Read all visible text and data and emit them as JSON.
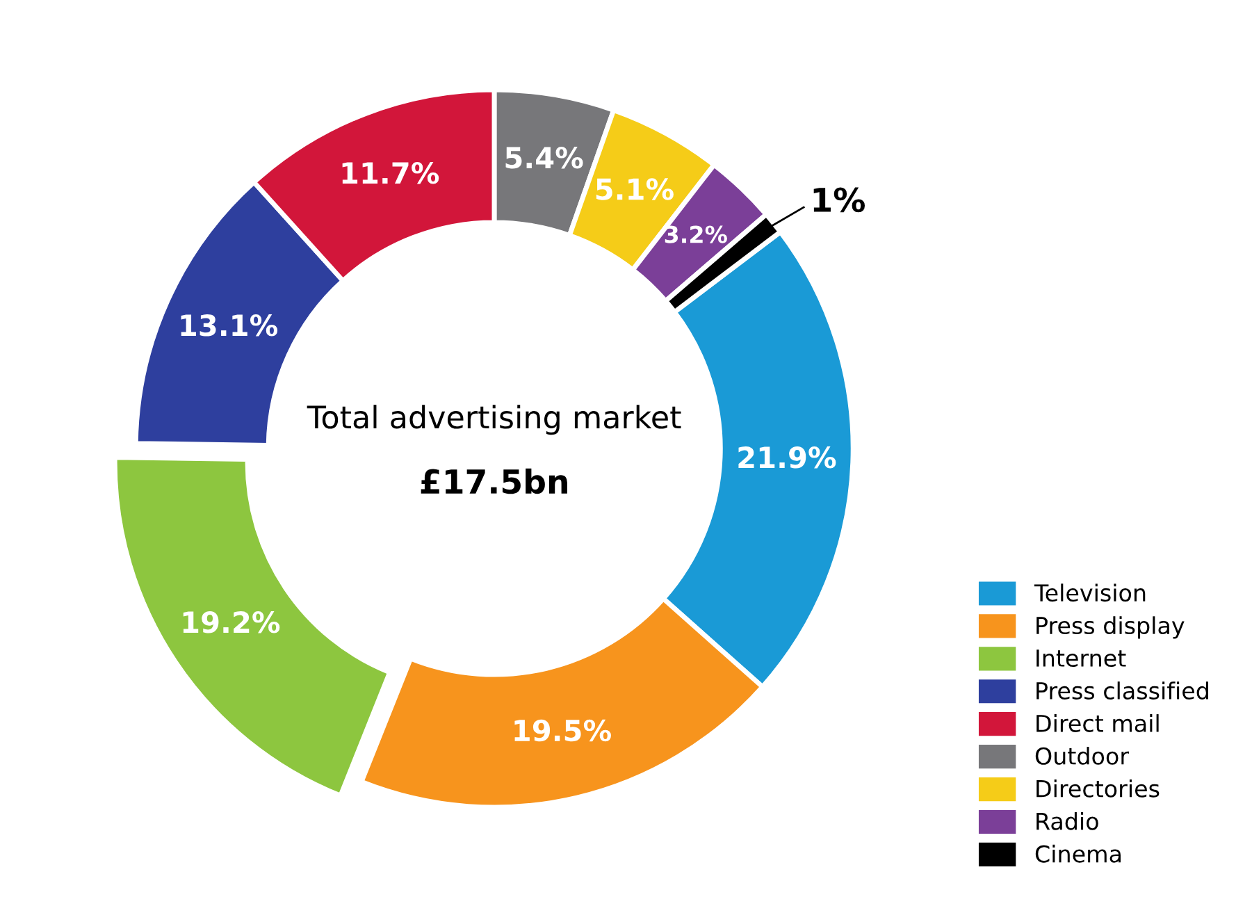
{
  "chart_data": {
    "type": "donut",
    "title": "Total advertising market",
    "subtitle": "£17.5bn",
    "categories": [
      "Television",
      "Press display",
      "Internet",
      "Press classified",
      "Direct mail",
      "Outdoor",
      "Directories",
      "Radio",
      "Cinema"
    ],
    "values": [
      21.9,
      19.5,
      19.2,
      13.1,
      11.7,
      5.4,
      5.1,
      3.2,
      1
    ],
    "colors": [
      "#1a9ad6",
      "#f7941d",
      "#8dc63f",
      "#2e3f9e",
      "#d2163a",
      "#77777a",
      "#f5cc18",
      "#7b3f98",
      "#000000"
    ],
    "value_labels": [
      "21.9%",
      "19.5%",
      "19.2%",
      "13.1%",
      "11.7%",
      "5.4%",
      "5.1%",
      "3.2%",
      "1%"
    ],
    "legend": "bottom right"
  }
}
